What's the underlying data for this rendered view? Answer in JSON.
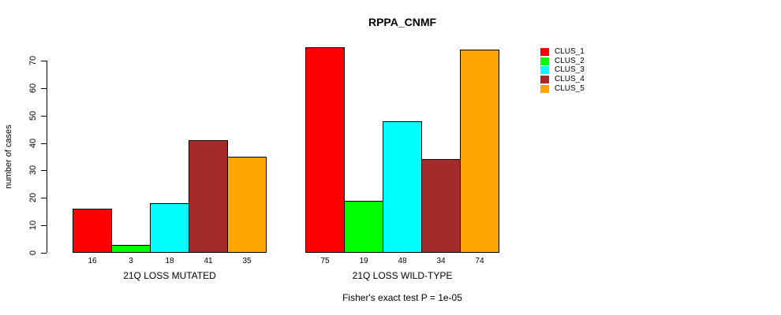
{
  "title": "RPPA_CNMF",
  "chart_data": {
    "type": "bar",
    "title": "RPPA_CNMF",
    "xlabel": "",
    "ylabel": "number of cases",
    "yticks": [
      0,
      10,
      20,
      30,
      40,
      50,
      60,
      70
    ],
    "axis_max": 70,
    "ylim": [
      0,
      75
    ],
    "grid": false,
    "legend_position": "right",
    "categories": [
      "21Q LOSS MUTATED",
      "21Q LOSS WILD-TYPE"
    ],
    "groups": [
      {
        "label": "21Q LOSS MUTATED",
        "values": [
          16,
          3,
          18,
          41,
          35
        ]
      },
      {
        "label": "21Q LOSS WILD-TYPE",
        "values": [
          75,
          19,
          48,
          34,
          74
        ]
      }
    ],
    "series": [
      {
        "name": "CLUS_1",
        "color": "#FF0000",
        "values": [
          16,
          75
        ]
      },
      {
        "name": "CLUS_2",
        "color": "#00FF00",
        "values": [
          3,
          19
        ]
      },
      {
        "name": "CLUS_3",
        "color": "#00FFFF",
        "values": [
          18,
          48
        ]
      },
      {
        "name": "CLUS_4",
        "color": "#A52A2A",
        "values": [
          41,
          34
        ]
      },
      {
        "name": "CLUS_5",
        "color": "#FFA500",
        "values": [
          35,
          74
        ]
      }
    ],
    "bar_value_labels": [
      [
        16,
        3,
        18,
        41,
        35
      ],
      [
        75,
        19,
        48,
        34,
        74
      ]
    ],
    "annotation": "Fisher's exact test P = 1e-05"
  }
}
